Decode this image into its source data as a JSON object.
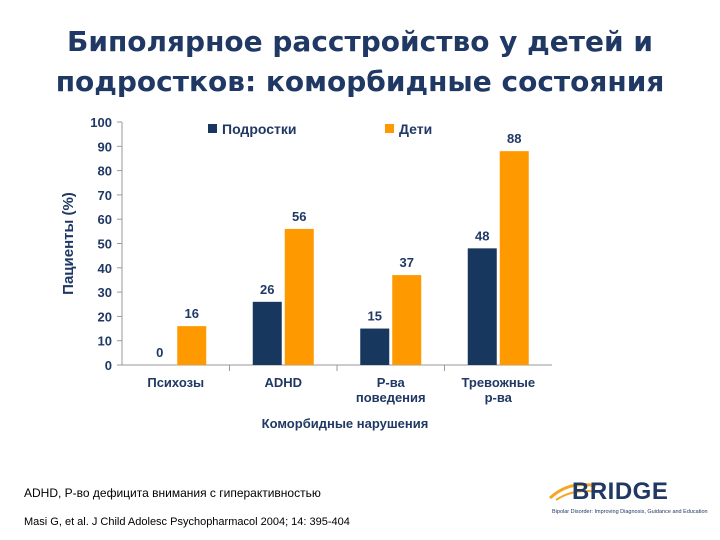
{
  "title": {
    "line1": "Биполярное расстройство у детей и",
    "line2": "подростков: коморбидные состояния"
  },
  "chart_data": {
    "type": "bar",
    "categories": [
      [
        "Психозы"
      ],
      [
        "ADHD"
      ],
      [
        "Р-ва",
        "поведения"
      ],
      [
        "Тревожные",
        "р-ва"
      ]
    ],
    "series": [
      {
        "name": "Подростки",
        "color": "#17375e",
        "values": [
          0,
          26,
          15,
          48
        ]
      },
      {
        "name": "Дети",
        "color": "#ff9900",
        "values": [
          16,
          56,
          37,
          88
        ]
      }
    ],
    "ylim": [
      0,
      100
    ],
    "yticks": [
      0,
      10,
      20,
      30,
      40,
      50,
      60,
      70,
      80,
      90,
      100
    ],
    "ylabel": "Пациенты (%)",
    "xlabel": "Коморбидные нарушения",
    "legend_position": "top",
    "grid": false
  },
  "footnote": "ADHD, Р-во дефицита внимания с гиперактивностью",
  "reference": "Masi G, et al. J Child Adolesc Psychopharmacol 2004; 14: 395-404",
  "logo": {
    "name": "BRIDGE",
    "tagline": "Bipolar Disorder: Improving Diagnosis, Guidance and Education",
    "colors": {
      "primary": "#1f3864",
      "accent": "#f5a623"
    }
  }
}
